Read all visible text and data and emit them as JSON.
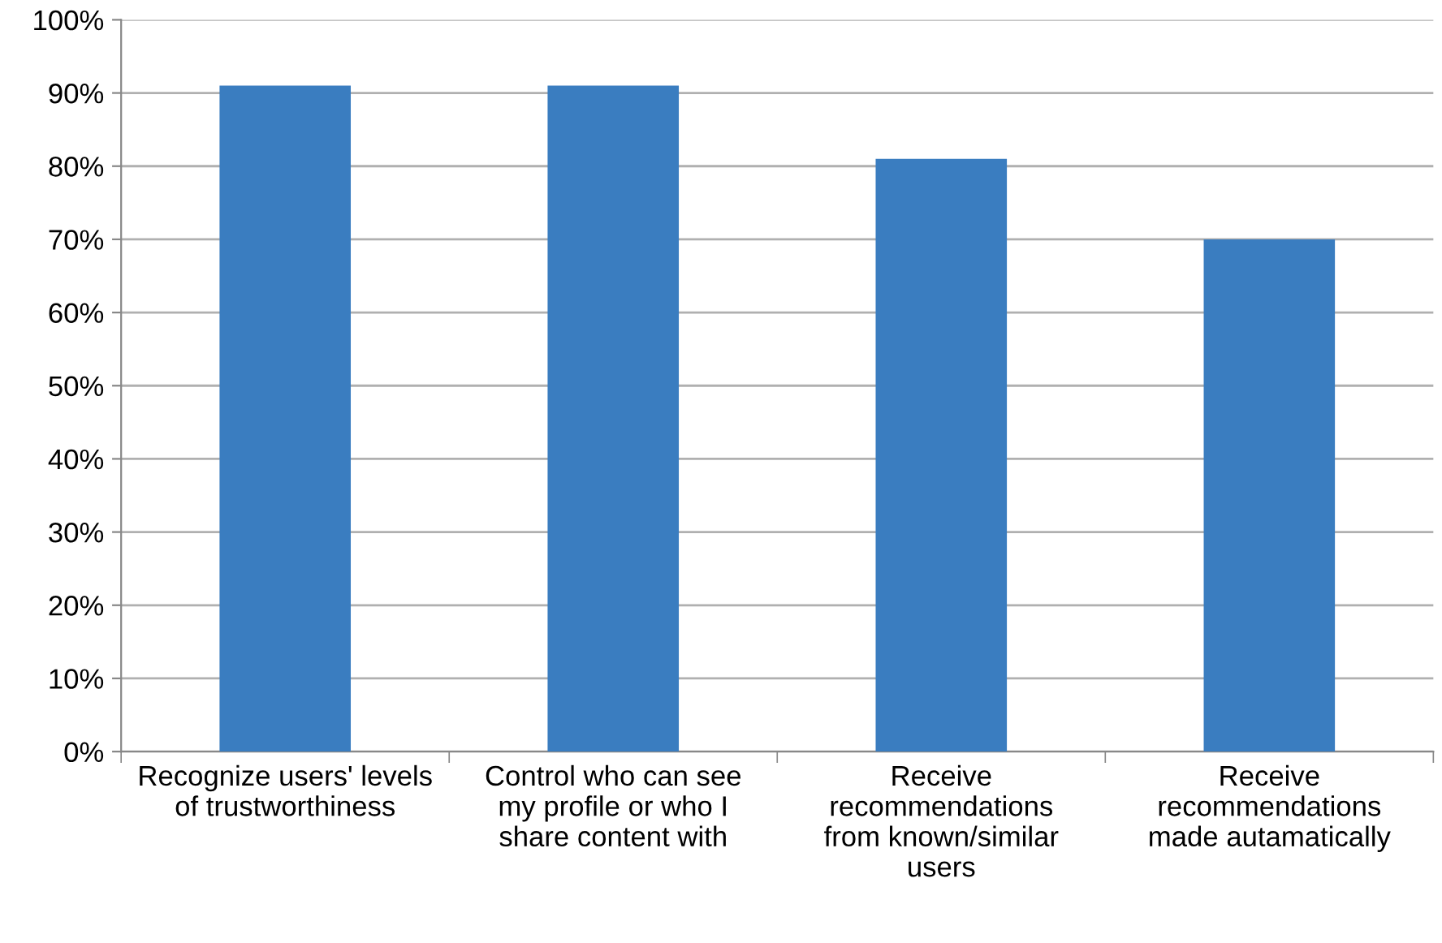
{
  "chart_data": {
    "type": "bar",
    "categories": [
      "Recognize users' levels\nof trustworthiness",
      "Control who can see\nmy profile or who I\nshare content with",
      "Receive\nrecommendations\nfrom known/similar\nusers",
      "Receive\nrecommendations\nmade autamatically"
    ],
    "values": [
      91,
      91,
      81,
      70
    ],
    "color": "#3a7dc0",
    "ylim": [
      0,
      100
    ],
    "yticks": [
      {
        "value": 0,
        "label": "0%"
      },
      {
        "value": 10,
        "label": "10%"
      },
      {
        "value": 20,
        "label": "20%"
      },
      {
        "value": 30,
        "label": "30%"
      },
      {
        "value": 40,
        "label": "40%"
      },
      {
        "value": 50,
        "label": "50%"
      },
      {
        "value": 60,
        "label": "60%"
      },
      {
        "value": 70,
        "label": "70%"
      },
      {
        "value": 80,
        "label": "80%"
      },
      {
        "value": 90,
        "label": "90%"
      },
      {
        "value": 100,
        "label": "100%"
      }
    ],
    "grid": "y",
    "legend": false
  }
}
